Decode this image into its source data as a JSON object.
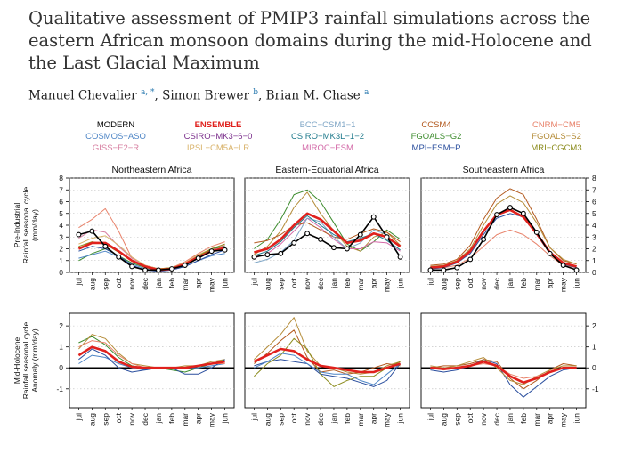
{
  "header": {
    "title": "Qualitative assessment of PMIP3 rainfall simulations across the eastern African monsoon domains during the mid-Holocene and the Last Glacial Maximum",
    "authors": [
      {
        "name": "Manuel Chevalier",
        "sup": "a, *"
      },
      {
        "name": "Simon Brewer",
        "sup": "b"
      },
      {
        "name": "Brian M. Chase",
        "sup": "a"
      }
    ]
  },
  "chart_data": {
    "type": "line",
    "legend_placement": "top",
    "legend": [
      {
        "name": "MODERN",
        "color": "#000000"
      },
      {
        "name": "ENSEMBLE",
        "color": "#e0211d"
      },
      {
        "name": "BCC−CSM1−1",
        "color": "#7fa6c6"
      },
      {
        "name": "CCSM4",
        "color": "#b35a1f"
      },
      {
        "name": "CNRM−CM5",
        "color": "#e8826a"
      },
      {
        "name": "COSMOS−ASO",
        "color": "#4f86c6"
      },
      {
        "name": "CSIRO−MK3−6−0",
        "color": "#7b2f8c"
      },
      {
        "name": "CSIRO−MK3L−1−2",
        "color": "#1f7a8c"
      },
      {
        "name": "FGOALS−G2",
        "color": "#3d8c2e"
      },
      {
        "name": "FGOALS−S2",
        "color": "#b58d3a"
      },
      {
        "name": "GISS−E2−R",
        "color": "#d77fa1"
      },
      {
        "name": "IPSL−CM5A−LR",
        "color": "#d9b36b"
      },
      {
        "name": "MIROC−ESM",
        "color": "#d36aa8"
      },
      {
        "name": "MPI−ESM−P",
        "color": "#2b4f9e"
      },
      {
        "name": "MRI−CGCM3",
        "color": "#8c8c1e"
      }
    ],
    "categories": [
      "jul",
      "aug",
      "sep",
      "oct",
      "nov",
      "dec",
      "jan",
      "feb",
      "mar",
      "apr",
      "may",
      "jun"
    ],
    "panel_titles": [
      "Northeastern Africa",
      "Eastern-Equatorial Africa",
      "Southeastern Africa"
    ],
    "rows": [
      {
        "ylabel": "Pre-Industrial\nRainfall seasonal cycle\n(mm/day)",
        "ylim": [
          0,
          8
        ],
        "yticks": [
          0,
          1,
          2,
          3,
          4,
          5,
          6,
          7,
          8
        ],
        "grid": true,
        "panels": [
          {
            "series": [
              {
                "name": "MODERN",
                "values": [
                  3.2,
                  3.5,
                  2.2,
                  1.3,
                  0.5,
                  0.2,
                  0.2,
                  0.3,
                  0.6,
                  1.2,
                  1.8,
                  1.9
                ]
              },
              {
                "name": "ENSEMBLE",
                "values": [
                  2.0,
                  2.5,
                  2.5,
                  1.8,
                  1.0,
                  0.5,
                  0.2,
                  0.3,
                  0.7,
                  1.3,
                  1.8,
                  2.1
                ]
              },
              {
                "name": "CNRM−CM5",
                "values": [
                  3.8,
                  4.5,
                  5.4,
                  3.5,
                  1.2,
                  0.6,
                  0.3,
                  0.4,
                  0.9,
                  1.6,
                  2.2,
                  2.6
                ]
              },
              {
                "name": "GISS−E2−R",
                "values": [
                  2.9,
                  3.6,
                  3.4,
                  2.2,
                  1.2,
                  0.6,
                  0.3,
                  0.3,
                  0.7,
                  1.3,
                  1.9,
                  2.3
                ]
              },
              {
                "name": "FGOALS−G2",
                "values": [
                  1.0,
                  1.6,
                  2.0,
                  1.4,
                  0.8,
                  0.4,
                  0.2,
                  0.3,
                  0.6,
                  1.3,
                  2.0,
                  2.2
                ]
              },
              {
                "name": "COSMOS−ASO",
                "values": [
                  1.2,
                  1.5,
                  1.8,
                  1.3,
                  0.7,
                  0.3,
                  0.1,
                  0.2,
                  0.5,
                  1.0,
                  1.4,
                  1.6
                ]
              },
              {
                "name": "IPSL−CM5A−LR",
                "values": [
                  2.4,
                  2.9,
                  3.1,
                  2.3,
                  1.3,
                  0.6,
                  0.3,
                  0.4,
                  0.8,
                  1.5,
                  2.0,
                  2.4
                ]
              },
              {
                "name": "MPI−ESM−P",
                "values": [
                  1.8,
                  2.2,
                  2.0,
                  1.4,
                  0.6,
                  0.2,
                  0.1,
                  0.2,
                  0.5,
                  1.0,
                  1.5,
                  1.9
                ]
              },
              {
                "name": "MRI−CGCM3",
                "values": [
                  2.2,
                  2.6,
                  2.4,
                  1.7,
                  1.0,
                  0.5,
                  0.3,
                  0.4,
                  0.7,
                  1.4,
                  2.0,
                  2.4
                ]
              }
            ]
          },
          {
            "series": [
              {
                "name": "MODERN",
                "values": [
                  1.3,
                  1.5,
                  1.6,
                  2.5,
                  3.3,
                  2.8,
                  2.1,
                  2.0,
                  3.2,
                  4.7,
                  3.0,
                  1.3
                ]
              },
              {
                "name": "ENSEMBLE",
                "values": [
                  1.7,
                  2.0,
                  2.8,
                  4.0,
                  5.0,
                  4.5,
                  3.5,
                  2.5,
                  2.7,
                  3.3,
                  3.0,
                  2.2
                ]
              },
              {
                "name": "FGOALS−G2",
                "values": [
                  2.0,
                  2.8,
                  4.5,
                  6.6,
                  7.0,
                  6.0,
                  4.2,
                  2.4,
                  1.8,
                  2.6,
                  3.6,
                  2.8
                ]
              },
              {
                "name": "FGOALS−S2",
                "values": [
                  1.5,
                  2.2,
                  3.5,
                  5.5,
                  6.8,
                  5.0,
                  3.5,
                  2.2,
                  1.8,
                  3.0,
                  3.4,
                  2.3
                ]
              },
              {
                "name": "MIROC−ESM",
                "values": [
                  1.2,
                  1.6,
                  2.4,
                  3.5,
                  4.6,
                  3.8,
                  2.8,
                  2.0,
                  2.0,
                  2.6,
                  2.5,
                  1.8
                ]
              },
              {
                "name": "CCSM4",
                "values": [
                  2.5,
                  2.7,
                  3.2,
                  4.0,
                  4.2,
                  3.6,
                  3.0,
                  2.8,
                  3.3,
                  3.7,
                  3.4,
                  2.6
                ]
              },
              {
                "name": "BCC−CSM1−1",
                "values": [
                  0.8,
                  1.1,
                  1.7,
                  2.7,
                  4.6,
                  4.3,
                  3.0,
                  2.0,
                  2.5,
                  3.6,
                  3.2,
                  1.3
                ]
              },
              {
                "name": "CSIRO−MK3L−1−2",
                "values": [
                  1.4,
                  1.8,
                  2.6,
                  3.8,
                  4.8,
                  4.0,
                  3.2,
                  2.6,
                  2.9,
                  3.3,
                  2.7,
                  1.9
                ]
              }
            ]
          },
          {
            "series": [
              {
                "name": "MODERN",
                "values": [
                  0.2,
                  0.2,
                  0.4,
                  1.1,
                  2.8,
                  4.9,
                  5.5,
                  5.0,
                  3.4,
                  1.6,
                  0.6,
                  0.2
                ]
              },
              {
                "name": "ENSEMBLE",
                "values": [
                  0.4,
                  0.5,
                  0.9,
                  1.8,
                  3.5,
                  4.9,
                  5.3,
                  4.7,
                  3.3,
                  1.7,
                  0.8,
                  0.5
                ]
              },
              {
                "name": "CCSM4",
                "values": [
                  0.6,
                  0.7,
                  1.1,
                  2.3,
                  4.5,
                  6.3,
                  7.1,
                  6.6,
                  4.5,
                  2.1,
                  1.0,
                  0.7
                ]
              },
              {
                "name": "FGOALS−S2",
                "values": [
                  0.5,
                  0.6,
                  1.0,
                  2.0,
                  4.0,
                  5.8,
                  6.5,
                  5.9,
                  4.2,
                  2.1,
                  1.1,
                  0.7
                ]
              },
              {
                "name": "CNRM−CM5",
                "values": [
                  0.3,
                  0.4,
                  0.6,
                  1.2,
                  2.2,
                  3.2,
                  3.6,
                  3.2,
                  2.4,
                  1.4,
                  0.6,
                  0.4
                ]
              },
              {
                "name": "MPI−ESM−P",
                "values": [
                  0.3,
                  0.4,
                  0.8,
                  1.6,
                  3.2,
                  4.6,
                  5.0,
                  4.7,
                  3.2,
                  1.6,
                  0.7,
                  0.4
                ]
              }
            ]
          }
        ]
      },
      {
        "ylabel": "Mid-Holocene\nRainfall seasonal cycle\nAnomaly (mm/day)",
        "ylim": [
          -1.9,
          2.6
        ],
        "yticks": [
          -1,
          0,
          1,
          2
        ],
        "grid": true,
        "panels": [
          {
            "series": [
              {
                "name": "ENSEMBLE",
                "values": [
                  0.6,
                  1.0,
                  0.8,
                  0.3,
                  0.05,
                  0.0,
                  0.0,
                  0.0,
                  0.0,
                  0.1,
                  0.2,
                  0.3
                ]
              },
              {
                "name": "FGOALS−G2",
                "values": [
                  1.2,
                  1.5,
                  1.1,
                  0.5,
                  0.1,
                  0.0,
                  0.0,
                  -0.1,
                  -0.2,
                  0.0,
                  0.2,
                  0.4
                ]
              },
              {
                "name": "FGOALS−S2",
                "values": [
                  0.9,
                  1.6,
                  1.4,
                  0.7,
                  0.2,
                  0.1,
                  0.0,
                  0.0,
                  0.1,
                  0.1,
                  0.3,
                  0.4
                ]
              },
              {
                "name": "COSMOS−ASO",
                "values": [
                  0.2,
                  0.6,
                  0.5,
                  0.2,
                  0.0,
                  -0.1,
                  0.0,
                  0.0,
                  0.0,
                  0.0,
                  0.1,
                  0.2
                ]
              },
              {
                "name": "MPI−ESM−P",
                "values": [
                  0.4,
                  0.9,
                  0.6,
                  0.0,
                  -0.2,
                  -0.1,
                  0.0,
                  0.0,
                  -0.3,
                  -0.3,
                  0.0,
                  0.4
                ]
              },
              {
                "name": "CNRM−CM5",
                "values": [
                  1.0,
                  1.3,
                  1.2,
                  0.6,
                  0.2,
                  0.0,
                  0.0,
                  0.0,
                  0.0,
                  0.1,
                  0.2,
                  0.2
                ]
              }
            ]
          },
          {
            "series": [
              {
                "name": "ENSEMBLE",
                "values": [
                  0.3,
                  0.6,
                  0.9,
                  0.8,
                  0.4,
                  0.1,
                  0.0,
                  -0.1,
                  -0.2,
                  -0.2,
                  0.0,
                  0.2
                ]
              },
              {
                "name": "FGOALS−S2",
                "values": [
                  0.4,
                  1.0,
                  1.6,
                  2.4,
                  0.8,
                  0.1,
                  0.0,
                  -0.2,
                  -0.3,
                  -0.2,
                  0.1,
                  0.3
                ]
              },
              {
                "name": "CCSM4",
                "values": [
                  0.2,
                  0.7,
                  1.3,
                  1.8,
                  0.5,
                  -0.2,
                  -0.1,
                  -0.3,
                  -0.2,
                  0.0,
                  0.2,
                  0.1
                ]
              },
              {
                "name": "MPI−ESM−P",
                "values": [
                  0.1,
                  0.3,
                  0.4,
                  0.3,
                  0.2,
                  -0.3,
                  -0.4,
                  -0.5,
                  -0.7,
                  -0.9,
                  -0.6,
                  0.2
                ]
              },
              {
                "name": "MRI−CGCM3",
                "values": [
                  -0.4,
                  0.2,
                  0.6,
                  1.4,
                  0.9,
                  -0.3,
                  -0.9,
                  -0.6,
                  -0.4,
                  -0.4,
                  0.0,
                  0.3
                ]
              },
              {
                "name": "COSMOS−ASO",
                "values": [
                  0.0,
                  0.3,
                  0.7,
                  0.6,
                  0.2,
                  -0.2,
                  -0.3,
                  -0.3,
                  -0.6,
                  -0.8,
                  -0.3,
                  0.2
                ]
              }
            ]
          },
          {
            "series": [
              {
                "name": "ENSEMBLE",
                "values": [
                  0.0,
                  -0.05,
                  0.0,
                  0.1,
                  0.3,
                  0.1,
                  -0.4,
                  -0.7,
                  -0.5,
                  -0.2,
                  0.0,
                  0.0
                ]
              },
              {
                "name": "MPI−ESM−P",
                "values": [
                  -0.1,
                  -0.2,
                  -0.1,
                  0.1,
                  0.4,
                  0.2,
                  -0.8,
                  -1.4,
                  -0.9,
                  -0.4,
                  -0.1,
                  0.0
                ]
              },
              {
                "name": "CCSM4",
                "values": [
                  0.0,
                  0.1,
                  0.1,
                  0.2,
                  0.4,
                  0.3,
                  -0.5,
                  -1.0,
                  -0.6,
                  -0.1,
                  0.2,
                  0.1
                ]
              },
              {
                "name": "FGOALS−S2",
                "values": [
                  0.1,
                  0.0,
                  0.1,
                  0.3,
                  0.5,
                  0.0,
                  -0.6,
                  -0.8,
                  -0.4,
                  -0.1,
                  0.1,
                  0.1
                ]
              },
              {
                "name": "CNRM−CM5",
                "values": [
                  0.0,
                  -0.1,
                  0.0,
                  0.1,
                  0.2,
                  0.1,
                  -0.3,
                  -0.5,
                  -0.4,
                  -0.2,
                  0.0,
                  0.0
                ]
              }
            ]
          }
        ]
      }
    ]
  }
}
